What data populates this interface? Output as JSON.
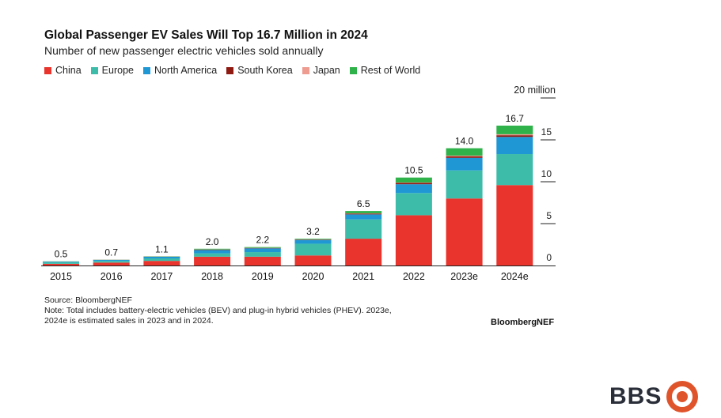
{
  "header": {
    "title": "Global Passenger EV Sales Will Top 16.7 Million in 2024",
    "subtitle": "Number of new passenger electric vehicles sold annually"
  },
  "footer": {
    "source": "Source: BloombergNEF",
    "note_line1": "Note: Total includes battery-electric vehicles (BEV) and plug-in hybrid vehicles (PHEV). 2023e,",
    "note_line2": "2024e is estimated sales in 2023 and in 2024.",
    "brand": "BloombergNEF"
  },
  "logo": {
    "text": "BBS"
  },
  "chart_data": {
    "type": "bar",
    "stacked": true,
    "title": "Global Passenger EV Sales Will Top 16.7 Million in 2024",
    "subtitle": "Number of new passenger electric vehicles sold annually",
    "categories": [
      "2015",
      "2016",
      "2017",
      "2018",
      "2019",
      "2020",
      "2021",
      "2022",
      "2023e",
      "2024e"
    ],
    "totals": [
      0.5,
      0.7,
      1.1,
      2.0,
      2.2,
      3.2,
      6.5,
      10.5,
      14.0,
      16.7
    ],
    "total_labels": [
      "0.5",
      "0.7",
      "1.1",
      "2.0",
      "2.2",
      "3.2",
      "6.5",
      "10.5",
      "14.0",
      "16.7"
    ],
    "series": [
      {
        "name": "China",
        "color": "#e8342c",
        "values": [
          0.2,
          0.35,
          0.55,
          1.05,
          1.05,
          1.2,
          3.2,
          6.0,
          8.0,
          9.6
        ]
      },
      {
        "name": "Europe",
        "color": "#3dbcaa",
        "values": [
          0.18,
          0.2,
          0.3,
          0.4,
          0.55,
          1.4,
          2.3,
          2.65,
          3.35,
          3.7
        ]
      },
      {
        "name": "North America",
        "color": "#1f97d4",
        "values": [
          0.08,
          0.12,
          0.19,
          0.4,
          0.45,
          0.45,
          0.6,
          1.05,
          1.5,
          2.05
        ]
      },
      {
        "name": "South Korea",
        "color": "#8e1a12",
        "values": [
          0.0,
          0.01,
          0.01,
          0.04,
          0.04,
          0.05,
          0.1,
          0.16,
          0.17,
          0.2
        ]
      },
      {
        "name": "Japan",
        "color": "#ee9b90",
        "values": [
          0.02,
          0.01,
          0.02,
          0.03,
          0.02,
          0.02,
          0.03,
          0.05,
          0.1,
          0.12
        ]
      },
      {
        "name": "Rest of World",
        "color": "#2fb24a",
        "values": [
          0.02,
          0.01,
          0.03,
          0.08,
          0.09,
          0.08,
          0.27,
          0.59,
          0.88,
          1.03
        ]
      }
    ],
    "yaxis": {
      "ticks": [
        0,
        5,
        10,
        15,
        20
      ],
      "tick_labels": [
        "0",
        "5",
        "10",
        "15",
        "20 million"
      ],
      "position": "right"
    },
    "ylim": [
      0,
      20
    ],
    "grid": false,
    "legend": "top-left"
  }
}
